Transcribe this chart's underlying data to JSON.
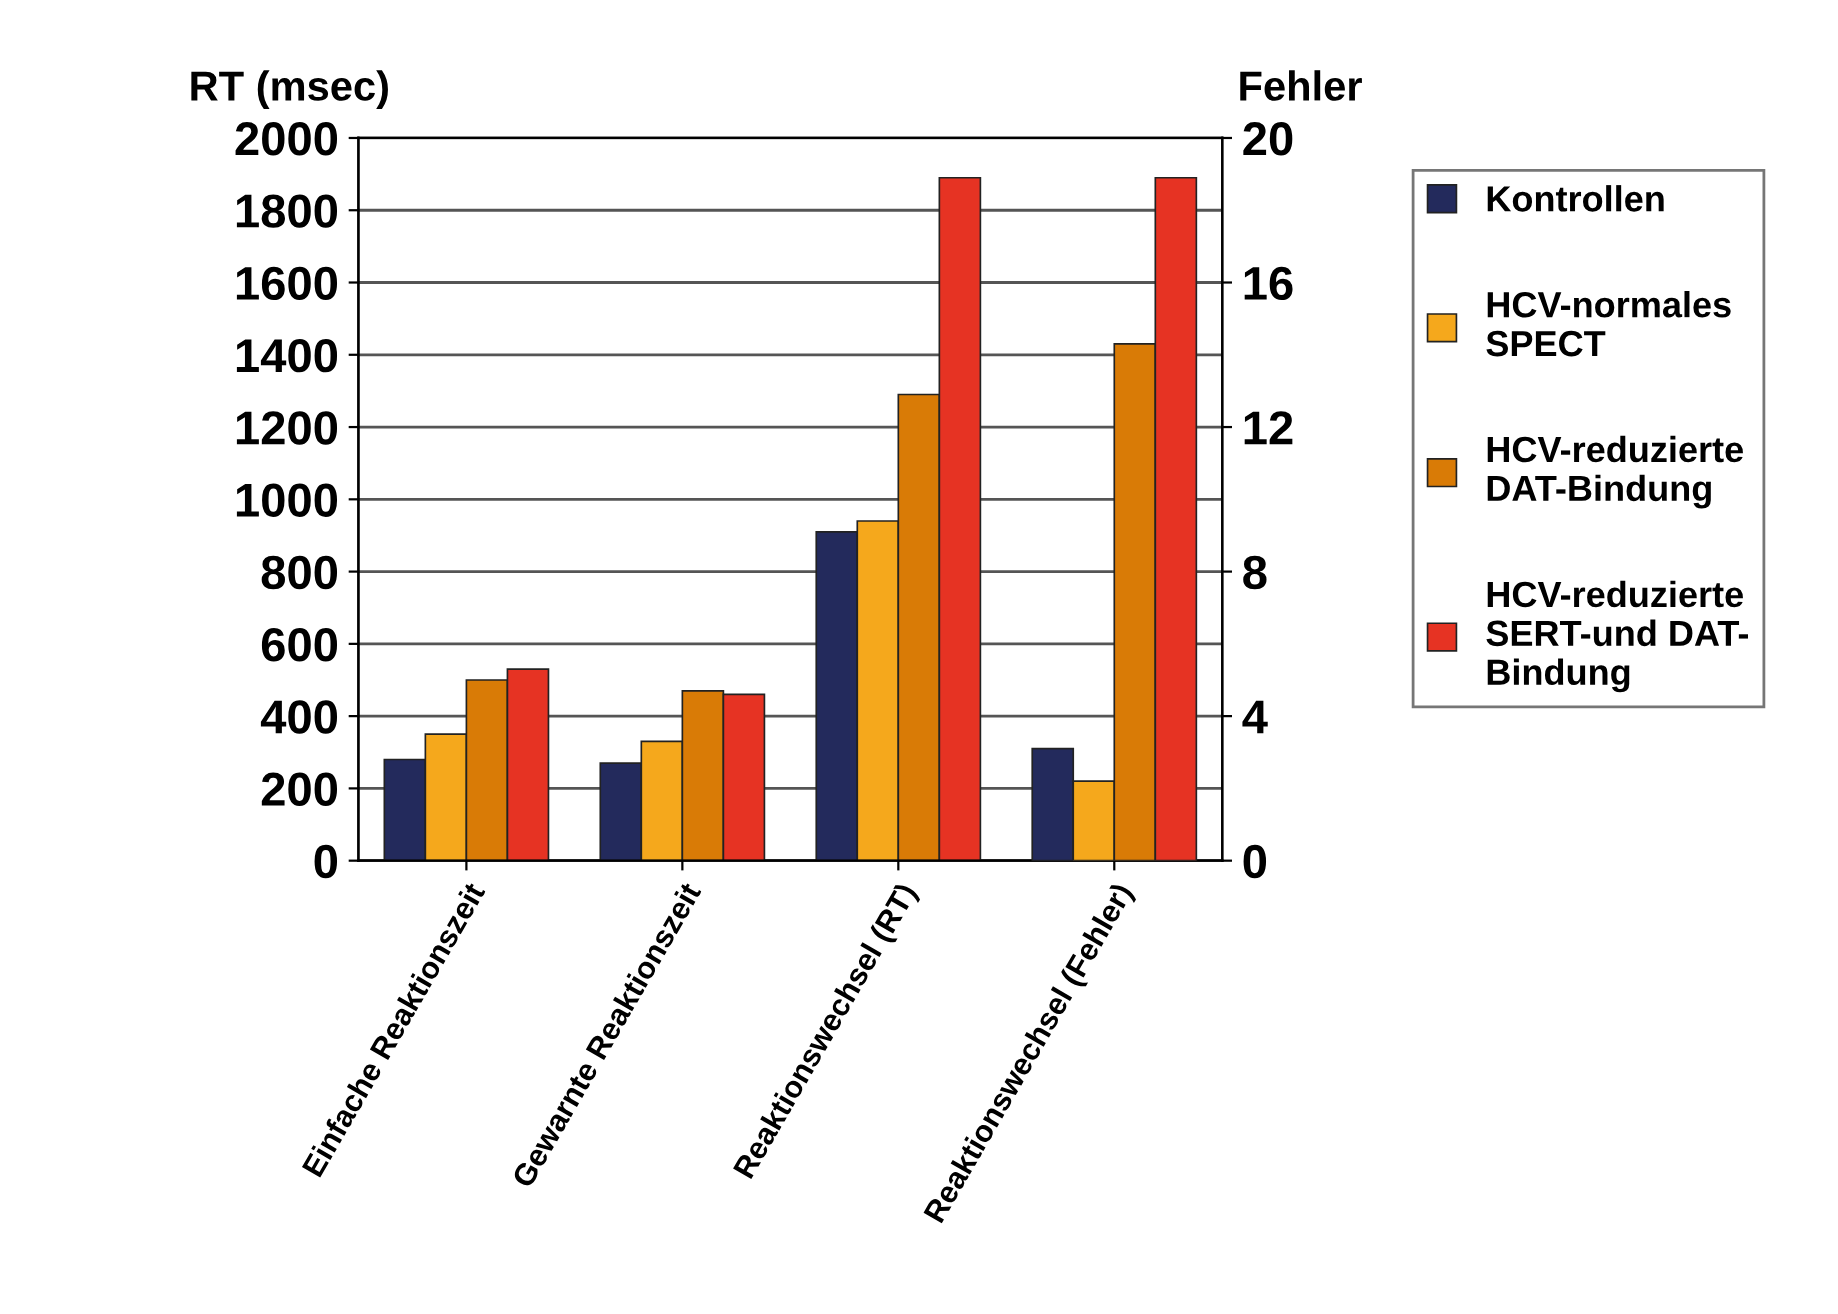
{
  "chart_data": {
    "type": "bar",
    "ylabel": "RT (msec)",
    "y2label": "Fehler",
    "categories": [
      "Einfache Reaktionszeit",
      "Gewarnte Reaktionszeit",
      "Reaktionswechsel (RT)",
      "Reaktionswechsel (Fehler)"
    ],
    "series": [
      {
        "name": "Kontrollen",
        "color": "#232a5c",
        "values": [
          280,
          270,
          910,
          null
        ]
      },
      {
        "name": "HCV-normales\nSPECT",
        "color": "#f5a81c",
        "values": [
          350,
          330,
          940,
          null
        ]
      },
      {
        "name": "HCV-reduzierte\nDAT-Bindung",
        "color": "#d97b06",
        "values": [
          500,
          470,
          1290,
          null
        ]
      },
      {
        "name": "HCV-reduzierte\nSERT-und DAT-\nBindung",
        "color": "#e63323",
        "values": [
          530,
          460,
          1890,
          null
        ]
      },
      {
        "color": "#232a5c",
        "axis": "y2",
        "values": [
          null,
          null,
          null,
          3.1
        ]
      },
      {
        "color": "#f5a81c",
        "axis": "y2",
        "values": [
          null,
          null,
          null,
          2.2
        ]
      },
      {
        "color": "#d97b06",
        "axis": "y2",
        "values": [
          null,
          null,
          null,
          14.3
        ]
      },
      {
        "color": "#e63323",
        "axis": "y2",
        "values": [
          null,
          null,
          null,
          18.9
        ]
      }
    ],
    "ylim": [
      0,
      2000
    ],
    "yticks": [
      0,
      200,
      400,
      600,
      800,
      1000,
      1200,
      1400,
      1600,
      1800,
      2000
    ],
    "y2lim": [
      0,
      20
    ],
    "y2ticks": [
      0,
      4,
      8,
      12,
      16,
      20
    ],
    "grid": "y",
    "legend": "right"
  }
}
